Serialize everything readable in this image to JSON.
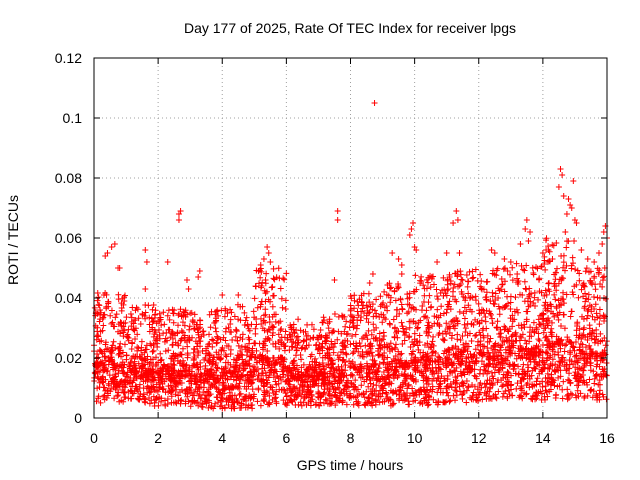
{
  "chart_data": {
    "type": "scatter",
    "title": "Day 177 of 2025, Rate Of TEC Index for receiver lpgs",
    "xlabel": "GPS time / hours",
    "ylabel": "ROTI / TECUs",
    "xlim": [
      0,
      16
    ],
    "ylim": [
      0,
      0.12
    ],
    "x_ticks": [
      "0",
      "2",
      "4",
      "6",
      "8",
      "10",
      "12",
      "14",
      "16"
    ],
    "y_ticks": [
      "0",
      "0.02",
      "0.04",
      "0.06",
      "0.08",
      "0.1",
      "0.12"
    ],
    "grid": true,
    "marker": "+",
    "color": "#ff0000",
    "series": [
      {
        "name": "ROTI",
        "profile_note": "dense scatter; typical band per ~1h segment in data units",
        "segments": [
          {
            "x0": 0.0,
            "x1": 1.0,
            "lo": 0.005,
            "hi": 0.042
          },
          {
            "x0": 1.0,
            "x1": 2.0,
            "lo": 0.004,
            "hi": 0.038
          },
          {
            "x0": 2.0,
            "x1": 3.0,
            "lo": 0.004,
            "hi": 0.037
          },
          {
            "x0": 3.0,
            "x1": 4.0,
            "lo": 0.003,
            "hi": 0.036
          },
          {
            "x0": 4.0,
            "x1": 5.0,
            "lo": 0.003,
            "hi": 0.038
          },
          {
            "x0": 5.0,
            "x1": 6.0,
            "lo": 0.004,
            "hi": 0.05
          },
          {
            "x0": 6.0,
            "x1": 7.0,
            "lo": 0.004,
            "hi": 0.033
          },
          {
            "x0": 7.0,
            "x1": 8.0,
            "lo": 0.004,
            "hi": 0.035
          },
          {
            "x0": 8.0,
            "x1": 9.0,
            "lo": 0.004,
            "hi": 0.042
          },
          {
            "x0": 9.0,
            "x1": 10.0,
            "lo": 0.004,
            "hi": 0.045
          },
          {
            "x0": 10.0,
            "x1": 11.0,
            "lo": 0.004,
            "hi": 0.048
          },
          {
            "x0": 11.0,
            "x1": 12.0,
            "lo": 0.005,
            "hi": 0.05
          },
          {
            "x0": 12.0,
            "x1": 13.0,
            "lo": 0.006,
            "hi": 0.05
          },
          {
            "x0": 13.0,
            "x1": 14.0,
            "lo": 0.006,
            "hi": 0.052
          },
          {
            "x0": 14.0,
            "x1": 15.0,
            "lo": 0.006,
            "hi": 0.06
          },
          {
            "x0": 15.0,
            "x1": 16.0,
            "lo": 0.006,
            "hi": 0.05
          }
        ],
        "points": [
          [
            0.55,
            0.057
          ],
          [
            0.65,
            0.058
          ],
          [
            0.35,
            0.054
          ],
          [
            0.42,
            0.055
          ],
          [
            0.8,
            0.05
          ],
          [
            0.75,
            0.05
          ],
          [
            1.6,
            0.056
          ],
          [
            1.65,
            0.052
          ],
          [
            1.6,
            0.043
          ],
          [
            2.3,
            0.052
          ],
          [
            2.65,
            0.068
          ],
          [
            2.7,
            0.069
          ],
          [
            2.65,
            0.066
          ],
          [
            2.9,
            0.046
          ],
          [
            2.95,
            0.043
          ],
          [
            3.3,
            0.049
          ],
          [
            3.25,
            0.047
          ],
          [
            4.0,
            0.041
          ],
          [
            4.5,
            0.041
          ],
          [
            5.3,
            0.053
          ],
          [
            5.4,
            0.057
          ],
          [
            5.45,
            0.055
          ],
          [
            5.5,
            0.052
          ],
          [
            5.2,
            0.051
          ],
          [
            5.35,
            0.046
          ],
          [
            7.6,
            0.069
          ],
          [
            7.6,
            0.066
          ],
          [
            7.5,
            0.046
          ],
          [
            8.75,
            0.105
          ],
          [
            8.7,
            0.048
          ],
          [
            8.6,
            0.045
          ],
          [
            9.3,
            0.055
          ],
          [
            9.5,
            0.053
          ],
          [
            9.6,
            0.051
          ],
          [
            9.6,
            0.048
          ],
          [
            9.9,
            0.063
          ],
          [
            9.95,
            0.065
          ],
          [
            10.0,
            0.057
          ],
          [
            10.05,
            0.056
          ],
          [
            9.85,
            0.061
          ],
          [
            10.7,
            0.052
          ],
          [
            11.0,
            0.055
          ],
          [
            11.2,
            0.065
          ],
          [
            11.3,
            0.069
          ],
          [
            11.35,
            0.066
          ],
          [
            11.4,
            0.055
          ],
          [
            12.4,
            0.056
          ],
          [
            12.5,
            0.055
          ],
          [
            12.8,
            0.053
          ],
          [
            13.0,
            0.052
          ],
          [
            12.9,
            0.049
          ],
          [
            13.5,
            0.066
          ],
          [
            13.45,
            0.063
          ],
          [
            13.6,
            0.062
          ],
          [
            13.55,
            0.059
          ],
          [
            13.3,
            0.058
          ],
          [
            14.0,
            0.055
          ],
          [
            14.1,
            0.056
          ],
          [
            14.3,
            0.053
          ],
          [
            14.55,
            0.083
          ],
          [
            14.6,
            0.081
          ],
          [
            14.5,
            0.077
          ],
          [
            14.65,
            0.074
          ],
          [
            14.75,
            0.068
          ],
          [
            14.8,
            0.073
          ],
          [
            14.85,
            0.071
          ],
          [
            14.9,
            0.07
          ],
          [
            14.95,
            0.079
          ],
          [
            15.0,
            0.066
          ],
          [
            15.05,
            0.065
          ],
          [
            14.7,
            0.062
          ],
          [
            15.2,
            0.056
          ],
          [
            15.4,
            0.053
          ],
          [
            15.6,
            0.052
          ],
          [
            15.75,
            0.055
          ],
          [
            15.9,
            0.062
          ],
          [
            15.95,
            0.064
          ],
          [
            16.0,
            0.06
          ],
          [
            15.85,
            0.058
          ]
        ]
      }
    ]
  }
}
